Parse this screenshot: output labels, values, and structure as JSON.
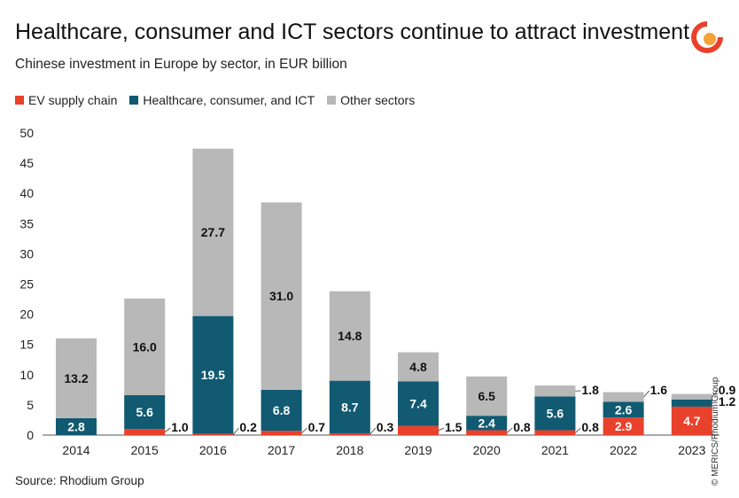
{
  "title": "Healthcare, consumer and ICT sectors continue to attract investment",
  "subtitle": "Chinese investment in Europe by sector, in EUR billion",
  "source": "Source: Rhodium Group",
  "copyright": "© MERICS/Rhodium Group",
  "colors": {
    "ev": "#e8412c",
    "health": "#115a72",
    "other": "#b8b8b8",
    "logo_red": "#e8412c",
    "logo_orange": "#f4a23a"
  },
  "chart_data": {
    "type": "bar",
    "stacked": true,
    "categories": [
      "2014",
      "2015",
      "2016",
      "2017",
      "2018",
      "2019",
      "2020",
      "2021",
      "2022",
      "2023"
    ],
    "series": [
      {
        "name": "EV supply chain",
        "values": [
          0.0,
          1.0,
          0.2,
          0.7,
          0.3,
          1.5,
          0.8,
          0.8,
          2.9,
          4.7
        ]
      },
      {
        "name": "Healthcare, consumer, and ICT",
        "values": [
          2.8,
          5.6,
          19.5,
          6.8,
          8.7,
          7.4,
          2.4,
          5.6,
          2.6,
          1.2
        ]
      },
      {
        "name": "Other sectors",
        "values": [
          13.2,
          16.0,
          27.7,
          31.0,
          14.8,
          4.8,
          6.5,
          1.8,
          1.6,
          0.9
        ]
      }
    ],
    "ylim": [
      0,
      50
    ],
    "yticks": [
      0,
      5,
      10,
      15,
      20,
      25,
      30,
      35,
      40,
      45,
      50
    ],
    "grid": false,
    "legend": "top-left"
  }
}
